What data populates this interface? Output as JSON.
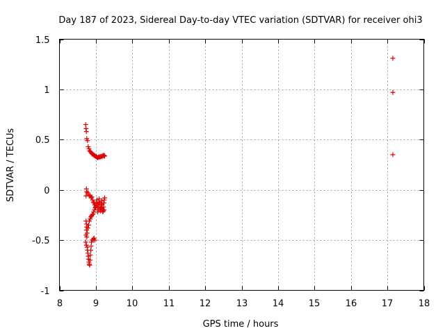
{
  "chart_data": {
    "type": "scatter",
    "title": "Day 187 of 2023, Sidereal Day-to-day VTEC variation (SDTVAR) for receiver ohi3",
    "xlabel": "GPS time / hours",
    "ylabel": "SDTVAR / TECUs",
    "xlim": [
      8,
      18
    ],
    "ylim": [
      -1,
      1.5
    ],
    "xticks": [
      8,
      9,
      10,
      11,
      12,
      13,
      14,
      15,
      16,
      17,
      18
    ],
    "yticks": [
      1.5,
      1,
      0.5,
      0,
      -0.5,
      -1
    ],
    "ytick_labels": [
      "1.5",
      "1",
      "0.5",
      "0",
      "-0.5",
      "-1"
    ],
    "grid": true,
    "marker": "+",
    "color": "#e00000",
    "series": [
      {
        "name": "SDTVAR",
        "points": [
          [
            8.72,
            0.65
          ],
          [
            8.73,
            0.61
          ],
          [
            8.74,
            0.58
          ],
          [
            8.75,
            0.51
          ],
          [
            8.77,
            0.49
          ],
          [
            8.79,
            0.43
          ],
          [
            8.81,
            0.41
          ],
          [
            8.83,
            0.39
          ],
          [
            8.85,
            0.38
          ],
          [
            8.87,
            0.37
          ],
          [
            8.89,
            0.36
          ],
          [
            8.91,
            0.355
          ],
          [
            8.93,
            0.35
          ],
          [
            8.95,
            0.345
          ],
          [
            8.97,
            0.34
          ],
          [
            8.99,
            0.335
          ],
          [
            9.01,
            0.33
          ],
          [
            9.03,
            0.325
          ],
          [
            9.05,
            0.32
          ],
          [
            9.07,
            0.325
          ],
          [
            9.09,
            0.33
          ],
          [
            9.11,
            0.325
          ],
          [
            9.13,
            0.33
          ],
          [
            9.15,
            0.335
          ],
          [
            9.17,
            0.33
          ],
          [
            9.19,
            0.34
          ],
          [
            9.21,
            0.345
          ],
          [
            9.23,
            0.335
          ],
          [
            9.24,
            0.34
          ],
          [
            8.74,
            0.01
          ],
          [
            8.75,
            -0.02
          ],
          [
            8.73,
            -0.06
          ],
          [
            8.78,
            -0.03
          ],
          [
            8.81,
            -0.05
          ],
          [
            8.84,
            -0.06
          ],
          [
            8.87,
            -0.08
          ],
          [
            8.89,
            -0.07
          ],
          [
            8.91,
            -0.1
          ],
          [
            8.93,
            -0.12
          ],
          [
            8.95,
            -0.13
          ],
          [
            8.97,
            -0.15
          ],
          [
            8.99,
            -0.17
          ],
          [
            9.01,
            -0.16
          ],
          [
            9.02,
            -0.12
          ],
          [
            9.03,
            -0.1
          ],
          [
            9.04,
            -0.14
          ],
          [
            9.05,
            -0.18
          ],
          [
            9.06,
            -0.2
          ],
          [
            9.07,
            -0.15
          ],
          [
            9.08,
            -0.12
          ],
          [
            9.09,
            -0.09
          ],
          [
            9.1,
            -0.13
          ],
          [
            9.11,
            -0.17
          ],
          [
            9.12,
            -0.19
          ],
          [
            9.13,
            -0.21
          ],
          [
            9.14,
            -0.18
          ],
          [
            9.15,
            -0.14
          ],
          [
            9.16,
            -0.11
          ],
          [
            9.17,
            -0.15
          ],
          [
            9.18,
            -0.19
          ],
          [
            9.19,
            -0.22
          ],
          [
            9.2,
            -0.2
          ],
          [
            9.21,
            -0.17
          ],
          [
            9.22,
            -0.13
          ],
          [
            9.23,
            -0.1
          ],
          [
            9.24,
            -0.08
          ],
          [
            9.22,
            -0.2
          ],
          [
            9.2,
            -0.21
          ],
          [
            9.05,
            -0.22
          ],
          [
            8.73,
            -0.31
          ],
          [
            8.74,
            -0.34
          ],
          [
            8.75,
            -0.37
          ],
          [
            8.74,
            -0.4
          ],
          [
            8.76,
            -0.43
          ],
          [
            8.73,
            -0.45
          ],
          [
            8.75,
            -0.47
          ],
          [
            8.72,
            -0.52
          ],
          [
            8.74,
            -0.55
          ],
          [
            8.76,
            -0.57
          ],
          [
            8.77,
            -0.6
          ],
          [
            8.78,
            -0.63
          ],
          [
            8.79,
            -0.66
          ],
          [
            8.8,
            -0.69
          ],
          [
            8.81,
            -0.72
          ],
          [
            8.82,
            -0.74
          ],
          [
            8.83,
            -0.75
          ],
          [
            8.84,
            -0.7
          ],
          [
            8.85,
            -0.65
          ],
          [
            8.86,
            -0.6
          ],
          [
            8.87,
            -0.56
          ],
          [
            8.88,
            -0.52
          ],
          [
            8.9,
            -0.5
          ],
          [
            8.93,
            -0.49
          ],
          [
            8.95,
            -0.48
          ],
          [
            8.97,
            -0.5
          ],
          [
            8.78,
            -0.38
          ],
          [
            8.8,
            -0.35
          ],
          [
            8.82,
            -0.31
          ],
          [
            8.84,
            -0.29
          ],
          [
            8.86,
            -0.27
          ],
          [
            8.88,
            -0.26
          ],
          [
            8.9,
            -0.25
          ],
          [
            8.92,
            -0.24
          ],
          [
            8.94,
            -0.22
          ],
          [
            8.96,
            -0.2
          ],
          [
            8.98,
            -0.18
          ],
          [
            9.0,
            -0.17
          ],
          [
            17.15,
            1.31
          ],
          [
            17.15,
            0.97
          ],
          [
            17.15,
            0.35
          ]
        ]
      }
    ]
  }
}
